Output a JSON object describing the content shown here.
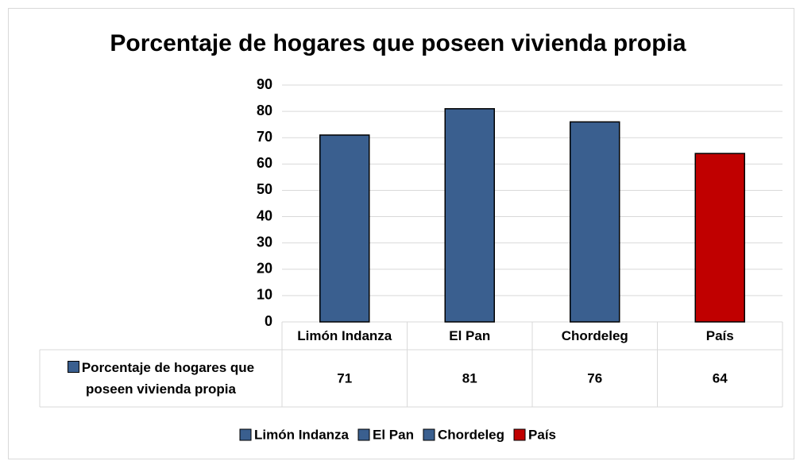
{
  "chart_data": {
    "type": "bar",
    "title": "Porcentaje de hogares que poseen vivienda propia",
    "categories": [
      "Limón Indanza",
      "El Pan",
      "Chordeleg",
      "País"
    ],
    "series": [
      {
        "name": "Porcentaje de hogares que poseen vivienda propia",
        "color": "#3a5f8f",
        "colors": [
          "#3a5f8f",
          "#3a5f8f",
          "#3a5f8f",
          "#c00000"
        ],
        "values": [
          71,
          81,
          76,
          64
        ]
      }
    ],
    "ylim": [
      0,
      90
    ],
    "yticks": [
      0,
      10,
      20,
      30,
      40,
      50,
      60,
      70,
      80,
      90
    ],
    "grid": true
  }
}
